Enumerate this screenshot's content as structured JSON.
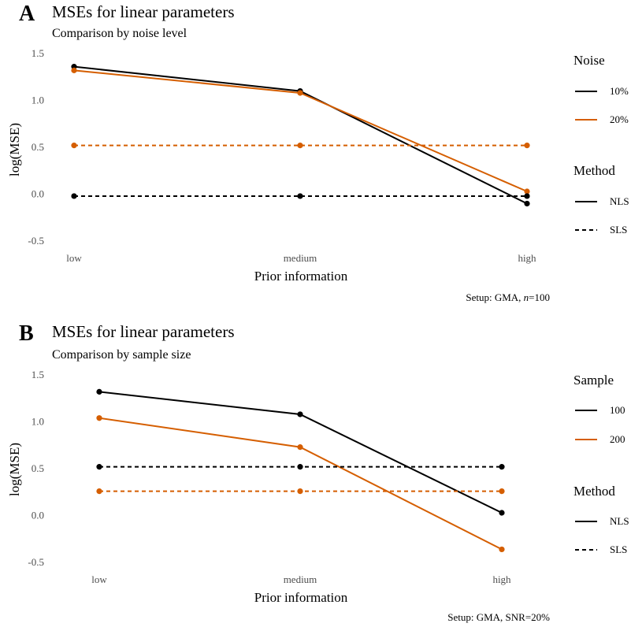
{
  "chart_data": [
    {
      "panel": "A",
      "type": "line",
      "title": "MSEs for linear parameters",
      "subtitle": "Comparison by noise level",
      "xlabel": "Prior information",
      "ylabel": "log(MSE)",
      "categories": [
        "low",
        "medium",
        "high"
      ],
      "ylim": [
        -0.6,
        1.55
      ],
      "yticks": [
        -0.5,
        0.0,
        0.5,
        1.0,
        1.5
      ],
      "ytick_labels": [
        "-0.5",
        "0.0",
        "0.5",
        "1.0",
        "1.5"
      ],
      "grid": false,
      "caption_prefix": "Setup: GMA, ",
      "caption_italic": "n",
      "caption_suffix": "=100",
      "legend": {
        "position": "right",
        "color_title": "Noise",
        "color_entries": [
          {
            "label": "10%",
            "color": "#000000"
          },
          {
            "label": "20%",
            "color": "#D55E00"
          }
        ],
        "linetype_title": "Method",
        "linetype_entries": [
          {
            "label": "NLS",
            "dash": "solid"
          },
          {
            "label": "SLS",
            "dash": "dashed"
          }
        ]
      },
      "series": [
        {
          "group": "10%",
          "method": "NLS",
          "color": "#000000",
          "dash": "solid",
          "values": [
            1.36,
            1.1,
            -0.1
          ]
        },
        {
          "group": "20%",
          "method": "NLS",
          "color": "#D55E00",
          "dash": "solid",
          "values": [
            1.32,
            1.08,
            0.03
          ]
        },
        {
          "group": "20%",
          "method": "SLS",
          "color": "#D55E00",
          "dash": "dashed",
          "values": [
            0.52,
            0.52,
            0.52
          ]
        },
        {
          "group": "10%",
          "method": "SLS",
          "color": "#000000",
          "dash": "dashed",
          "values": [
            -0.02,
            -0.02,
            -0.02
          ]
        }
      ]
    },
    {
      "panel": "B",
      "type": "line",
      "title": "MSEs for linear parameters",
      "subtitle": "Comparison by sample size",
      "xlabel": "Prior information",
      "ylabel": "log(MSE)",
      "categories": [
        "low",
        "medium",
        "high"
      ],
      "ylim": [
        -0.6,
        1.55
      ],
      "yticks": [
        -0.5,
        0.0,
        0.5,
        1.0,
        1.5
      ],
      "ytick_labels": [
        "-0.5",
        "0.0",
        "0.5",
        "1.0",
        "1.5"
      ],
      "grid": false,
      "caption_prefix": "Setup: GMA, SNR=20%",
      "caption_italic": "",
      "caption_suffix": "",
      "legend": {
        "position": "right",
        "color_title": "Sample",
        "color_entries": [
          {
            "label": "100",
            "color": "#000000"
          },
          {
            "label": "200",
            "color": "#D55E00"
          }
        ],
        "linetype_title": "Method",
        "linetype_entries": [
          {
            "label": "NLS",
            "dash": "solid"
          },
          {
            "label": "SLS",
            "dash": "dashed"
          }
        ]
      },
      "series": [
        {
          "group": "100",
          "method": "NLS",
          "color": "#000000",
          "dash": "solid",
          "values": [
            1.32,
            1.08,
            0.03
          ]
        },
        {
          "group": "200",
          "method": "NLS",
          "color": "#D55E00",
          "dash": "solid",
          "values": [
            1.04,
            0.73,
            -0.36
          ]
        },
        {
          "group": "100",
          "method": "SLS",
          "color": "#000000",
          "dash": "dashed",
          "values": [
            0.52,
            0.52,
            0.52
          ]
        },
        {
          "group": "200",
          "method": "SLS",
          "color": "#D55E00",
          "dash": "dashed",
          "values": [
            0.26,
            0.26,
            0.26
          ]
        }
      ]
    }
  ]
}
